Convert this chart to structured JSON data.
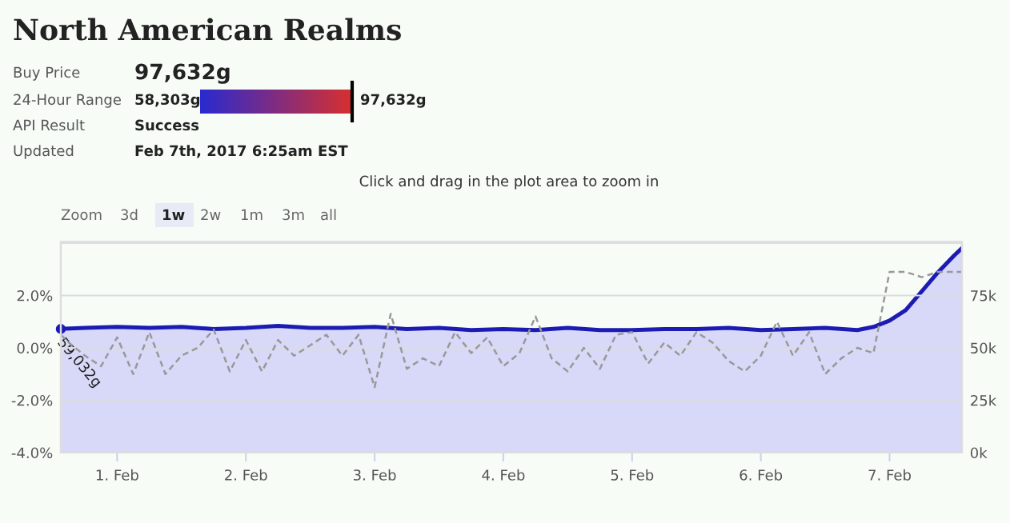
{
  "chart_data": [
    {
      "type": "other",
      "title": "North American Realms",
      "annotations": [
        "Buy Price",
        "97,632g",
        "24-Hour Range",
        "58,303g",
        "97,632g",
        "API Result",
        "Success",
        "Updated",
        "Feb 7th, 2017 6:25am EST"
      ]
    },
    {
      "type": "line",
      "xlim": [
        "2017-01-31T13:30",
        "2017-02-07T13:30"
      ],
      "xticks": [
        {
          "value": "2017-02-01",
          "label": "1. Feb"
        },
        {
          "value": "2017-02-02",
          "label": "2. Feb"
        },
        {
          "value": "2017-02-03",
          "label": "3. Feb"
        },
        {
          "value": "2017-02-04",
          "label": "4. Feb"
        },
        {
          "value": "2017-02-05",
          "label": "5. Feb"
        },
        {
          "value": "2017-02-06",
          "label": "6. Feb"
        },
        {
          "value": "2017-02-07",
          "label": "7. Feb"
        }
      ],
      "ylim": [
        -4,
        4
      ],
      "yticks": [
        {
          "value": -4,
          "label": "-4.0%"
        },
        {
          "value": -2,
          "label": "-2.0%"
        },
        {
          "value": 0,
          "label": "0.0%"
        },
        {
          "value": 2,
          "label": "2.0%"
        },
        {
          "value": 4,
          "label": null
        }
      ],
      "y2lim": [
        0,
        100000
      ],
      "y2ticks": [
        {
          "value": 0,
          "label": "0k"
        },
        {
          "value": 25000,
          "label": "25k"
        },
        {
          "value": 50000,
          "label": "50k"
        },
        {
          "value": 75000,
          "label": "75k"
        },
        {
          "value": 100000,
          "label": null
        }
      ],
      "grid": "y",
      "series": [
        {
          "type": "area",
          "axis": "y2",
          "color": "#1c1cb4",
          "x": [
            "2017-01-31T13:30",
            "2017-01-31T18:00",
            "2017-02-01T00:00",
            "2017-02-01T06:00",
            "2017-02-01T12:00",
            "2017-02-01T18:00",
            "2017-02-02T00:00",
            "2017-02-02T06:00",
            "2017-02-02T12:00",
            "2017-02-02T18:00",
            "2017-02-03T00:00",
            "2017-02-03T06:00",
            "2017-02-03T12:00",
            "2017-02-03T18:00",
            "2017-02-04T00:00",
            "2017-02-04T06:00",
            "2017-02-04T12:00",
            "2017-02-04T18:00",
            "2017-02-05T00:00",
            "2017-02-05T06:00",
            "2017-02-05T12:00",
            "2017-02-05T18:00",
            "2017-02-06T00:00",
            "2017-02-06T06:00",
            "2017-02-06T12:00",
            "2017-02-06T18:00",
            "2017-02-06T21:00",
            "2017-02-07T00:00",
            "2017-02-07T03:00",
            "2017-02-07T06:00",
            "2017-02-07T09:00",
            "2017-02-07T12:00",
            "2017-02-07T13:30"
          ],
          "values": [
            59032,
            59500,
            60000,
            59500,
            60000,
            59000,
            59500,
            60500,
            59500,
            59500,
            60000,
            59000,
            59500,
            58500,
            59000,
            58500,
            59500,
            58500,
            58500,
            59000,
            59000,
            59500,
            58500,
            59000,
            59500,
            58500,
            60000,
            63000,
            68000,
            77000,
            86000,
            94000,
            97632
          ]
        },
        {
          "type": "line",
          "axis": "y",
          "color": "#999999",
          "line_style": "dashed",
          "x": [
            "2017-01-31T13:30",
            "2017-01-31T15:00",
            "2017-01-31T18:00",
            "2017-01-31T21:00",
            "2017-02-01T00:00",
            "2017-02-01T03:00",
            "2017-02-01T06:00",
            "2017-02-01T09:00",
            "2017-02-01T12:00",
            "2017-02-01T15:00",
            "2017-02-01T18:00",
            "2017-02-01T21:00",
            "2017-02-02T00:00",
            "2017-02-02T03:00",
            "2017-02-02T06:00",
            "2017-02-02T09:00",
            "2017-02-02T12:00",
            "2017-02-02T15:00",
            "2017-02-02T18:00",
            "2017-02-02T21:00",
            "2017-02-03T00:00",
            "2017-02-03T03:00",
            "2017-02-03T06:00",
            "2017-02-03T09:00",
            "2017-02-03T12:00",
            "2017-02-03T15:00",
            "2017-02-03T18:00",
            "2017-02-03T21:00",
            "2017-02-04T00:00",
            "2017-02-04T03:00",
            "2017-02-04T06:00",
            "2017-02-04T09:00",
            "2017-02-04T12:00",
            "2017-02-04T15:00",
            "2017-02-04T18:00",
            "2017-02-04T21:00",
            "2017-02-05T00:00",
            "2017-02-05T03:00",
            "2017-02-05T06:00",
            "2017-02-05T09:00",
            "2017-02-05T12:00",
            "2017-02-05T15:00",
            "2017-02-05T18:00",
            "2017-02-05T21:00",
            "2017-02-06T00:00",
            "2017-02-06T03:00",
            "2017-02-06T06:00",
            "2017-02-06T09:00",
            "2017-02-06T12:00",
            "2017-02-06T15:00",
            "2017-02-06T18:00",
            "2017-02-06T21:00",
            "2017-02-07T00:00",
            "2017-02-07T03:00",
            "2017-02-07T06:00",
            "2017-02-07T09:00",
            "2017-02-07T12:00",
            "2017-02-07T13:30"
          ],
          "values": [
            0.5,
            0.2,
            -0.3,
            -0.7,
            0.4,
            -1.0,
            0.6,
            -1.0,
            -0.3,
            0.0,
            0.7,
            -0.9,
            0.3,
            -0.9,
            0.3,
            -0.3,
            0.1,
            0.5,
            -0.3,
            0.5,
            -1.5,
            1.3,
            -0.8,
            -0.4,
            -0.7,
            0.6,
            -0.2,
            0.4,
            -0.7,
            -0.2,
            1.2,
            -0.4,
            -0.9,
            0.0,
            -0.8,
            0.5,
            0.6,
            -0.6,
            0.2,
            -0.3,
            0.6,
            0.2,
            -0.5,
            -0.9,
            -0.3,
            1.0,
            -0.3,
            0.6,
            -1.0,
            -0.4,
            0.0,
            -0.2,
            2.9,
            2.9,
            2.7,
            2.9,
            2.9,
            2.9
          ]
        }
      ],
      "annotations": [
        "Click and drag in the plot area to zoom in",
        "Zoom",
        "3d",
        "1w",
        "2w",
        "1m",
        "3m",
        "all",
        "59,032g"
      ]
    }
  ]
}
